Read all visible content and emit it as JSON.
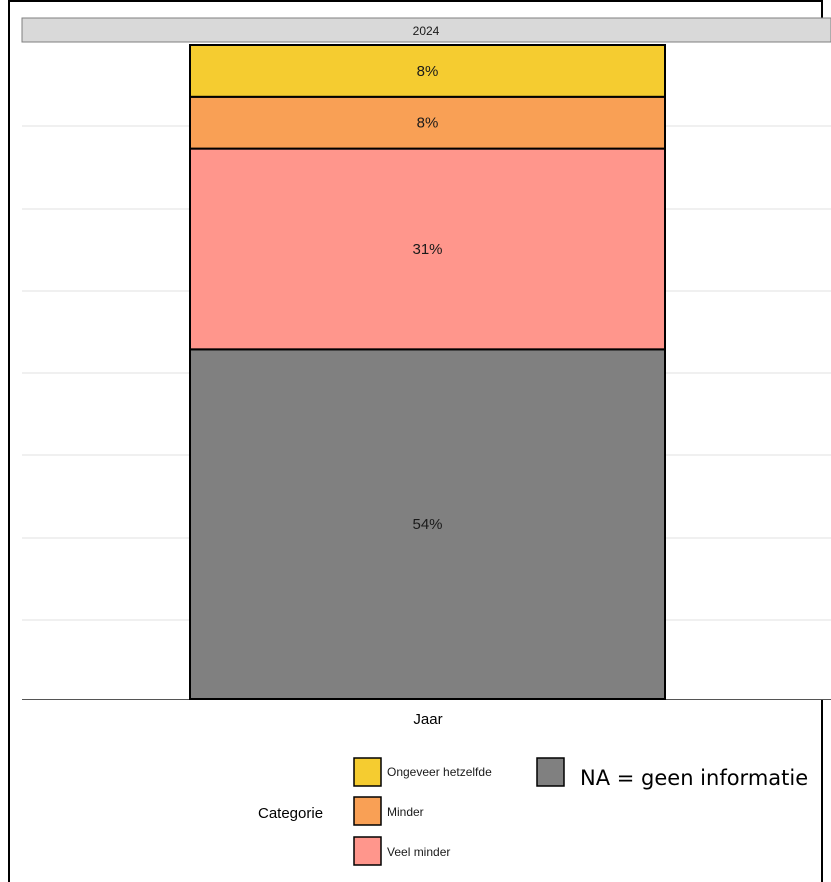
{
  "chart_data": {
    "type": "bar",
    "stacked": true,
    "facet_label": "2024",
    "categories": [
      "2024"
    ],
    "xlabel": "Jaar",
    "ylabel": "",
    "ylim": [
      0,
      100
    ],
    "grid": true,
    "series": [
      {
        "name": "NA",
        "values": [
          54
        ],
        "label": "54%",
        "color": "#808080"
      },
      {
        "name": "Veel minder",
        "values": [
          31
        ],
        "label": "31%",
        "color": "#FF968C"
      },
      {
        "name": "Minder",
        "values": [
          8
        ],
        "label": "8%",
        "color": "#F9A055"
      },
      {
        "name": "Ongeveer hetzelfde",
        "values": [
          8
        ],
        "label": "8%",
        "color": "#F5CC30"
      }
    ],
    "legend": {
      "title": "Categorie",
      "placement": "bottom",
      "items": [
        {
          "label": "Ongeveer hetzelfde",
          "color": "#F5CC30"
        },
        {
          "label": "Minder",
          "color": "#F9A055"
        },
        {
          "label": "Veel minder",
          "color": "#FF968C"
        },
        {
          "label": "",
          "color": "#808080"
        }
      ]
    },
    "note": "NA = geen informatie"
  }
}
